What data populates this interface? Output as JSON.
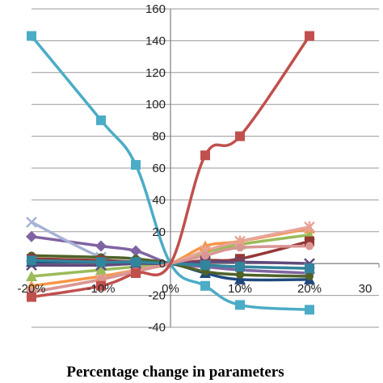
{
  "chart_data": {
    "type": "line",
    "title": "",
    "xlabel": "Percentage change in parameters",
    "ylabel": "",
    "xlim": [
      -20,
      30
    ],
    "ylim": [
      -40,
      160
    ],
    "x_ticks": [
      -20,
      -10,
      0,
      10,
      20,
      30
    ],
    "x_tick_labels": [
      "-20%",
      "-10%",
      "0%",
      "10%",
      "20%",
      "30"
    ],
    "y_ticks": [
      -40,
      -20,
      0,
      20,
      40,
      60,
      80,
      100,
      120,
      140,
      160
    ],
    "y_tick_labels": [
      "-40",
      "-20",
      "0",
      "20",
      "40",
      "60",
      "80",
      "100",
      "120",
      "140",
      "160"
    ],
    "grid": true,
    "legend": "none",
    "series": [
      {
        "color": "#4bacc6",
        "marker": "square",
        "x": [
          -20,
          -10,
          -5,
          0,
          5,
          10,
          20
        ],
        "y": [
          143,
          90,
          62,
          0,
          -14,
          -26,
          -29
        ]
      },
      {
        "color": "#c0504d",
        "marker": "square",
        "x": [
          -20,
          -10,
          -5,
          0,
          5,
          10,
          20
        ],
        "y": [
          -21,
          -14,
          -6,
          0,
          68,
          80,
          143
        ]
      },
      {
        "color": "#8064a2",
        "marker": "diamond",
        "x": [
          -20,
          -10,
          -5,
          0,
          5,
          10,
          20
        ],
        "y": [
          17,
          11,
          8,
          0,
          -2,
          -4,
          -6
        ]
      },
      {
        "color": "#a6b2d6",
        "marker": "x",
        "x": [
          -20,
          -10,
          -5,
          0,
          5,
          10,
          20
        ],
        "y": [
          26,
          4,
          1,
          0,
          -1,
          -2,
          -3
        ]
      },
      {
        "color": "#f79646",
        "marker": "triangle",
        "x": [
          -20,
          -10,
          -5,
          0,
          5,
          10,
          20
        ],
        "y": [
          -14,
          -8,
          -4,
          0,
          11,
          14,
          22
        ]
      },
      {
        "color": "#9bbb59",
        "marker": "triangle",
        "x": [
          -20,
          -10,
          -5,
          0,
          5,
          10,
          20
        ],
        "y": [
          -8,
          -4,
          -2,
          0,
          7,
          12,
          18
        ]
      },
      {
        "color": "#e6a49a",
        "marker": "star",
        "x": [
          -20,
          -10,
          -5,
          0,
          5,
          10,
          20
        ],
        "y": [
          -18,
          -10,
          -4,
          0,
          8,
          14,
          23
        ]
      },
      {
        "color": "#1f497d",
        "marker": "triangle",
        "x": [
          -20,
          -10,
          -5,
          0,
          5,
          10,
          20
        ],
        "y": [
          1,
          1,
          0.5,
          0,
          -6,
          -10,
          -10
        ]
      },
      {
        "color": "#4f6228",
        "marker": "circle",
        "x": [
          -20,
          -10,
          -5,
          0,
          5,
          10,
          20
        ],
        "y": [
          5,
          4,
          3,
          0,
          -5,
          -7,
          -8
        ]
      },
      {
        "color": "#953735",
        "marker": "square",
        "x": [
          -20,
          -10,
          -5,
          0,
          5,
          10,
          20
        ],
        "y": [
          3,
          2,
          1,
          0,
          2,
          3,
          14
        ]
      },
      {
        "color": "#604a7b",
        "marker": "x",
        "x": [
          -20,
          -10,
          -5,
          0,
          5,
          10,
          20
        ],
        "y": [
          -1,
          -1,
          0,
          0,
          1,
          1,
          0
        ]
      },
      {
        "color": "#31859c",
        "marker": "square",
        "x": [
          -20,
          -10,
          -5,
          0,
          5,
          10,
          20
        ],
        "y": [
          2,
          1,
          1,
          0,
          -1,
          -2,
          -3
        ]
      },
      {
        "color": "#d99694",
        "marker": "circle",
        "x": [
          -20,
          -10,
          -5,
          0,
          5,
          10,
          20
        ],
        "y": [
          -18,
          -10,
          -5,
          0,
          5,
          10,
          11
        ]
      }
    ]
  }
}
